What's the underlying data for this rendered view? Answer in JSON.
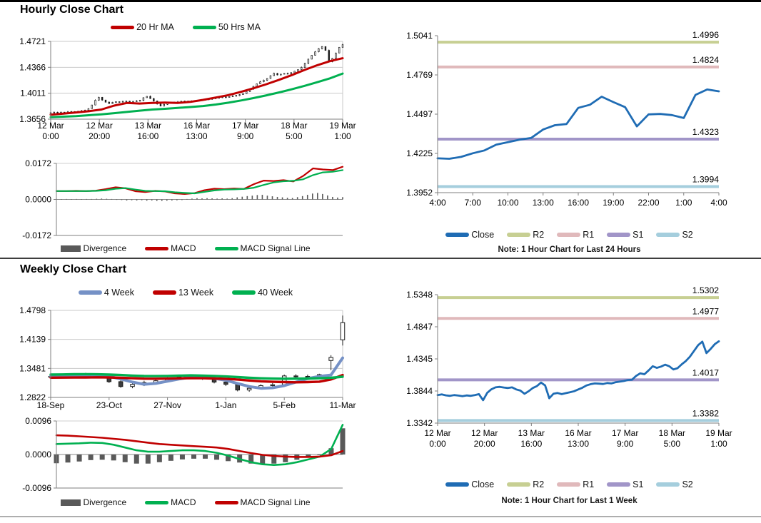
{
  "colors": {
    "red": "#c00000",
    "green": "#00b050",
    "close_blue": "#1f6cb4",
    "ma4_blue": "#7591c6",
    "r2_olive": "#c7cf93",
    "r1_pink": "#e0b9bb",
    "s1_purple": "#a195c8",
    "s2_lightblue": "#a5cedd",
    "divergence_gray": "#595959"
  },
  "chart_data": [
    {
      "id": "hourly-price",
      "type": "candlestick",
      "title": "Hourly Close Chart",
      "y_ticks": [
        "1.4721",
        "1.4366",
        "1.4011",
        "1.3656"
      ],
      "y_range": [
        1.3656,
        1.4721
      ],
      "x_ticks": [
        [
          "12 Mar",
          "0:00"
        ],
        [
          "12 Mar",
          "20:00"
        ],
        [
          "13 Mar",
          "16:00"
        ],
        [
          "16 Mar",
          "13:00"
        ],
        [
          "17 Mar",
          "9:00"
        ],
        [
          "18 Mar",
          "5:00"
        ],
        [
          "19 Mar",
          "1:00"
        ]
      ],
      "close_values": [
        1.3745,
        1.375,
        1.3744,
        1.3752,
        1.3748,
        1.3756,
        1.376,
        1.3755,
        1.3765,
        1.377,
        1.3778,
        1.38,
        1.385,
        1.3915,
        1.3955,
        1.3918,
        1.3888,
        1.387,
        1.3885,
        1.3895,
        1.389,
        1.3898,
        1.3902,
        1.3894,
        1.39,
        1.3906,
        1.3912,
        1.395,
        1.3968,
        1.3938,
        1.3905,
        1.3865,
        1.3835,
        1.3858,
        1.388,
        1.389,
        1.3884,
        1.3892,
        1.39,
        1.3904,
        1.3898,
        1.3902,
        1.3908,
        1.3913,
        1.3918,
        1.3925,
        1.3931,
        1.3938,
        1.3945,
        1.3952,
        1.396,
        1.3954,
        1.3965,
        1.3972,
        1.3981,
        1.3992,
        1.4005,
        1.4035,
        1.4068,
        1.4105,
        1.414,
        1.4168,
        1.419,
        1.4212,
        1.4252,
        1.4282,
        1.4262,
        1.4272,
        1.4282,
        1.4276,
        1.4292,
        1.4312,
        1.4335,
        1.4365,
        1.442,
        1.4478,
        1.453,
        1.4578,
        1.4622,
        1.465,
        1.4598,
        1.4442,
        1.4488,
        1.4562,
        1.464,
        1.4675
      ],
      "series": [
        {
          "name": "20 Hr MA",
          "color": "#c00000",
          "values": [
            1.3718,
            1.3732,
            1.3748,
            1.3764,
            1.3788,
            1.3842,
            1.3878,
            1.387,
            1.3878,
            1.3884,
            1.3878,
            1.3892,
            1.392,
            1.3952,
            1.3985,
            1.403,
            1.408,
            1.4135,
            1.4195,
            1.426,
            1.433,
            1.4395,
            1.445,
            1.449
          ]
        },
        {
          "name": "50 Hrs MA",
          "color": "#00b050",
          "values": [
            1.3682,
            1.369,
            1.3698,
            1.371,
            1.3722,
            1.3738,
            1.3755,
            1.3772,
            1.3788,
            1.3798,
            1.381,
            1.3822,
            1.3836,
            1.3856,
            1.3882,
            1.3912,
            1.3945,
            1.3982,
            1.4022,
            1.4065,
            1.4112,
            1.4162,
            1.4215,
            1.428
          ]
        }
      ]
    },
    {
      "id": "hourly-macd",
      "type": "bar+line",
      "y_ticks": [
        "0.0172",
        "0.0000",
        "-0.0172"
      ],
      "y_range": [
        -0.0172,
        0.0172
      ],
      "divergence": {
        "name": "Divergence",
        "color": "#595959",
        "values": [
          0.0002,
          0.0001,
          0.0002,
          0.0001,
          0.0002,
          0.0001,
          0.0002,
          0.0002,
          0.0003,
          0.0004,
          0.0003,
          0.0002,
          -0.0002,
          -0.0003,
          -0.0005,
          -0.0004,
          -0.0005,
          -0.0004,
          -0.0006,
          -0.0005,
          -0.0007,
          -0.0007,
          -0.0006,
          -0.0005,
          -0.0004,
          -0.0003,
          0.0002,
          0.0004,
          0.0006,
          0.0005,
          0.0006,
          0.0005,
          0.0004,
          0.0005,
          0.0004,
          0.0006,
          0.001,
          0.0013,
          0.0016,
          0.0018,
          0.0021,
          0.0022,
          0.0018,
          0.0015,
          0.0012,
          0.001,
          0.0008,
          0.0007,
          0.0011,
          0.0016,
          0.0022,
          0.0028,
          0.0031,
          0.0026,
          0.0019,
          0.0012,
          0.0009,
          0.0011
        ]
      },
      "series": [
        {
          "name": "MACD",
          "color": "#c00000",
          "values": [
            0.004,
            0.004,
            0.0041,
            0.004,
            0.0042,
            0.0049,
            0.0058,
            0.0053,
            0.0039,
            0.0035,
            0.0041,
            0.0038,
            0.0029,
            0.0026,
            0.003,
            0.0044,
            0.0051,
            0.0049,
            0.0052,
            0.005,
            0.0073,
            0.009,
            0.0088,
            0.0092,
            0.0086,
            0.0112,
            0.0148,
            0.0143,
            0.014,
            0.0156
          ]
        },
        {
          "name": "MACD Signal Line",
          "color": "#00b050",
          "values": [
            0.004,
            0.004,
            0.004,
            0.004,
            0.0041,
            0.0044,
            0.0051,
            0.0054,
            0.0047,
            0.0041,
            0.004,
            0.0039,
            0.0034,
            0.0031,
            0.0029,
            0.0036,
            0.0043,
            0.0047,
            0.0048,
            0.005,
            0.0056,
            0.0069,
            0.0081,
            0.0087,
            0.0089,
            0.0096,
            0.0116,
            0.0129,
            0.0132,
            0.014
          ]
        }
      ]
    },
    {
      "id": "hourly-sr",
      "type": "line",
      "note": "Note: 1 Hour Chart for Last 24 Hours",
      "y_ticks": [
        "1.5041",
        "1.4769",
        "1.4497",
        "1.4225",
        "1.3952"
      ],
      "y_range": [
        1.3952,
        1.5041
      ],
      "x_ticks": [
        "4:00",
        "7:00",
        "10:00",
        "13:00",
        "16:00",
        "19:00",
        "22:00",
        "1:00",
        "4:00"
      ],
      "close": {
        "name": "Close",
        "color": "#1f6cb4",
        "values": [
          1.419,
          1.4187,
          1.42,
          1.4225,
          1.4245,
          1.4285,
          1.4302,
          1.432,
          1.4332,
          1.439,
          1.442,
          1.4428,
          1.454,
          1.4562,
          1.4618,
          1.458,
          1.4545,
          1.4412,
          1.4495,
          1.4498,
          1.449,
          1.447,
          1.463,
          1.4668,
          1.4655
        ]
      },
      "levels": [
        {
          "name": "R2",
          "label": "1.4996",
          "value": 1.4996,
          "color": "#c7cf93"
        },
        {
          "name": "R1",
          "label": "1.4824",
          "value": 1.4824,
          "color": "#e0b9bb"
        },
        {
          "name": "S1",
          "label": "1.4323",
          "value": 1.4323,
          "color": "#a195c8"
        },
        {
          "name": "S2",
          "label": "1.3994",
          "value": 1.3994,
          "color": "#a5cedd"
        }
      ]
    },
    {
      "id": "weekly-price",
      "type": "candlestick",
      "title": "Weekly Close Chart",
      "y_ticks": [
        "1.4798",
        "1.4139",
        "1.3481",
        "1.2822"
      ],
      "y_range": [
        1.2822,
        1.4798
      ],
      "x_ticks": [
        "18-Sep",
        "23-Oct",
        "27-Nov",
        "1-Jan",
        "5-Feb",
        "11-Mar"
      ],
      "candles": {
        "open": [
          1.33,
          1.328,
          1.332,
          1.3345,
          1.333,
          1.331,
          1.318,
          1.307,
          1.312,
          1.316,
          1.32,
          1.325,
          1.329,
          1.328,
          1.325,
          1.317,
          1.312,
          1.299,
          1.303,
          1.309,
          1.311,
          1.331,
          1.33,
          1.329,
          1.366,
          1.413
        ],
        "high": [
          1.334,
          1.336,
          1.337,
          1.338,
          1.336,
          1.333,
          1.322,
          1.316,
          1.32,
          1.323,
          1.328,
          1.332,
          1.333,
          1.331,
          1.328,
          1.32,
          1.315,
          1.306,
          1.312,
          1.315,
          1.334,
          1.335,
          1.334,
          1.336,
          1.378,
          1.468
        ],
        "low": [
          1.323,
          1.326,
          1.329,
          1.33,
          1.327,
          1.315,
          1.304,
          1.303,
          1.308,
          1.312,
          1.317,
          1.322,
          1.325,
          1.322,
          1.314,
          1.308,
          1.296,
          1.295,
          1.3,
          1.305,
          1.309,
          1.327,
          1.326,
          1.327,
          1.344,
          1.4
        ],
        "close": [
          1.328,
          1.332,
          1.3345,
          1.333,
          1.331,
          1.318,
          1.307,
          1.312,
          1.316,
          1.32,
          1.325,
          1.329,
          1.328,
          1.325,
          1.317,
          1.312,
          1.299,
          1.303,
          1.309,
          1.311,
          1.331,
          1.33,
          1.329,
          1.334,
          1.373,
          1.452
        ]
      },
      "series": [
        {
          "name": "4 Week",
          "color": "#7591c6",
          "width": 4,
          "values": [
            1.33,
            1.331,
            1.3318,
            1.3325,
            1.332,
            1.33,
            1.324,
            1.317,
            1.312,
            1.314,
            1.319,
            1.324,
            1.328,
            1.3275,
            1.3255,
            1.321,
            1.314,
            1.307,
            1.303,
            1.304,
            1.309,
            1.317,
            1.325,
            1.33,
            1.333,
            1.372
          ]
        },
        {
          "name": "13 Week",
          "color": "#c00000",
          "width": 3.4,
          "values": [
            1.327,
            1.3272,
            1.3274,
            1.3276,
            1.3278,
            1.3276,
            1.3268,
            1.3258,
            1.3248,
            1.3246,
            1.325,
            1.3256,
            1.326,
            1.3258,
            1.3252,
            1.3244,
            1.3228,
            1.3206,
            1.3188,
            1.3176,
            1.317,
            1.3166,
            1.317,
            1.318,
            1.323,
            1.333
          ]
        },
        {
          "name": "40 Week",
          "color": "#00b050",
          "width": 3.4,
          "values": [
            1.334,
            1.3344,
            1.3348,
            1.335,
            1.3346,
            1.334,
            1.333,
            1.3318,
            1.3308,
            1.3306,
            1.331,
            1.3316,
            1.3322,
            1.3318,
            1.331,
            1.3298,
            1.3284,
            1.3268,
            1.3256,
            1.325,
            1.3246,
            1.3248,
            1.3252,
            1.3258,
            1.3268,
            1.3292
          ]
        }
      ]
    },
    {
      "id": "weekly-macd",
      "type": "bar+line",
      "y_ticks": [
        "0.0096",
        "0.0000",
        "-0.0096"
      ],
      "y_range": [
        -0.0096,
        0.0096
      ],
      "divergence": {
        "name": "Divergence",
        "color": "#595959",
        "values": [
          -0.0025,
          -0.0023,
          -0.002,
          -0.0016,
          -0.0015,
          -0.0017,
          -0.0022,
          -0.0026,
          -0.0026,
          -0.0022,
          -0.0018,
          -0.0014,
          -0.0012,
          -0.0012,
          -0.0015,
          -0.0019,
          -0.0023,
          -0.0026,
          -0.0027,
          -0.0026,
          -0.0022,
          -0.0015,
          -0.0008,
          -0.0002,
          0.0018,
          0.0075
        ]
      },
      "series": [
        {
          "name": "MACD",
          "color": "#00b050",
          "values": [
            0.003,
            0.0031,
            0.0032,
            0.0034,
            0.0033,
            0.0028,
            0.002,
            0.0012,
            0.0008,
            0.0008,
            0.001,
            0.0012,
            0.0012,
            0.001,
            0.0005,
            -0.0003,
            -0.0013,
            -0.0022,
            -0.0028,
            -0.003,
            -0.0028,
            -0.0022,
            -0.0014,
            -0.0006,
            0.0016,
            0.0085
          ]
        },
        {
          "name": "MACD Signal Line",
          "color": "#c00000",
          "values": [
            0.0055,
            0.0054,
            0.0052,
            0.005,
            0.0048,
            0.0045,
            0.0042,
            0.0038,
            0.0034,
            0.003,
            0.0028,
            0.0026,
            0.0024,
            0.0022,
            0.002,
            0.0016,
            0.001,
            0.0004,
            -0.0001,
            -0.0004,
            -0.0006,
            -0.0007,
            -0.0007,
            -0.0006,
            -0.0002,
            0.001
          ]
        }
      ]
    },
    {
      "id": "weekly-sr",
      "type": "line",
      "note": "Note: 1 Hour Chart for Last 1 Week",
      "y_ticks": [
        "1.5348",
        "1.4847",
        "1.4345",
        "1.3844",
        "1.3342"
      ],
      "y_range": [
        1.3342,
        1.5348
      ],
      "x_ticks": [
        [
          "12 Mar",
          "0:00"
        ],
        [
          "12 Mar",
          "20:00"
        ],
        [
          "13 Mar",
          "16:00"
        ],
        [
          "16 Mar",
          "13:00"
        ],
        [
          "17 Mar",
          "9:00"
        ],
        [
          "18 Mar",
          "5:00"
        ],
        [
          "19 Mar",
          "1:00"
        ]
      ],
      "close": {
        "name": "Close",
        "color": "#1f6cb4",
        "values": [
          1.378,
          1.379,
          1.3775,
          1.3768,
          1.378,
          1.3772,
          1.3762,
          1.3774,
          1.3768,
          1.378,
          1.3795,
          1.37,
          1.3815,
          1.387,
          1.39,
          1.3908,
          1.3898,
          1.389,
          1.39,
          1.3868,
          1.385,
          1.38,
          1.384,
          1.389,
          1.392,
          1.3975,
          1.393,
          1.373,
          1.38,
          1.3812,
          1.3795,
          1.381,
          1.3825,
          1.384,
          1.3868,
          1.3895,
          1.393,
          1.395,
          1.3962,
          1.3958,
          1.3953,
          1.3968,
          1.3962,
          1.398,
          1.399,
          1.4,
          1.4015,
          1.402,
          1.408,
          1.412,
          1.4105,
          1.4165,
          1.423,
          1.4205,
          1.4225,
          1.4255,
          1.423,
          1.418,
          1.42,
          1.426,
          1.431,
          1.438,
          1.447,
          1.456,
          1.4615,
          1.4435,
          1.45,
          1.4575,
          1.462
        ]
      },
      "levels": [
        {
          "name": "R2",
          "label": "1.5302",
          "value": 1.5302,
          "color": "#c7cf93"
        },
        {
          "name": "R1",
          "label": "1.4977",
          "value": 1.4977,
          "color": "#e0b9bb"
        },
        {
          "name": "S1",
          "label": "1.4017",
          "value": 1.4017,
          "color": "#a195c8"
        },
        {
          "name": "S2",
          "label": "1.3382",
          "value": 1.3382,
          "color": "#a5cedd"
        }
      ]
    }
  ]
}
